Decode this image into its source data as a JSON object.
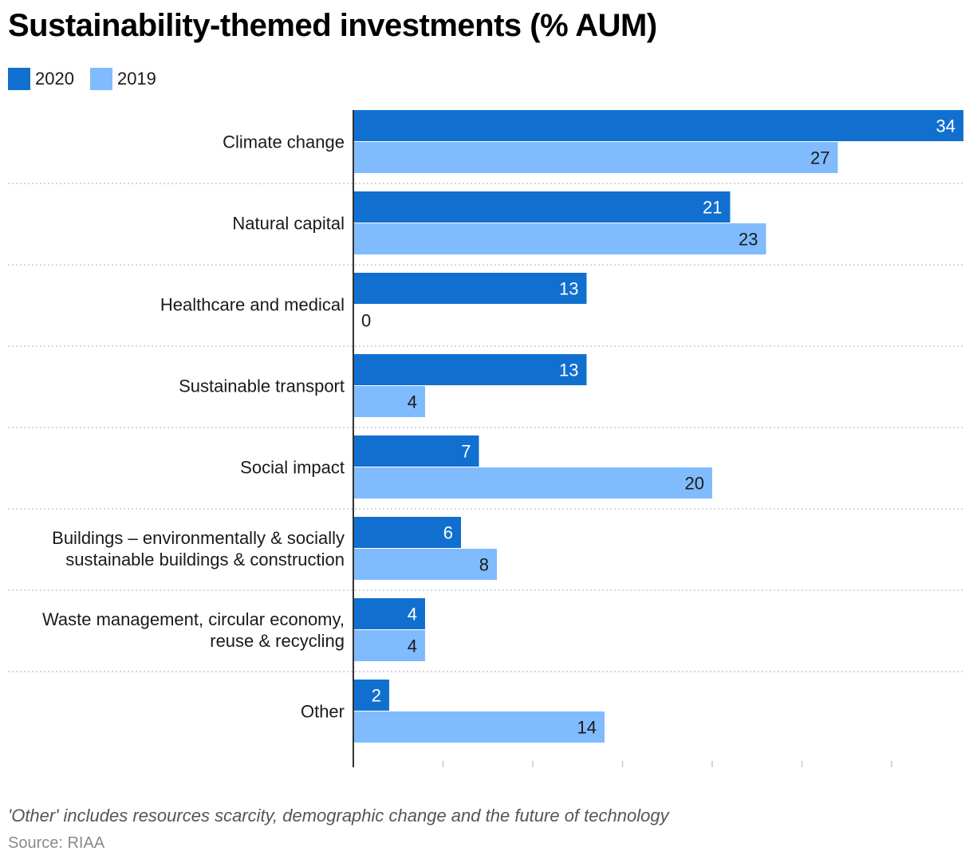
{
  "title": "Sustainability-themed investments (% AUM)",
  "note": "'Other' includes resources scarcity, demographic change and the future of technology",
  "source": "Source: RIAA",
  "colors": {
    "series_2020": "#1170cf",
    "series_2019": "#80bbfe",
    "grid": "#c8c8c8",
    "axis": "#333333"
  },
  "chart_data": {
    "type": "bar",
    "orientation": "horizontal",
    "categories": [
      [
        "Climate change"
      ],
      [
        "Natural capital"
      ],
      [
        "Healthcare and medical"
      ],
      [
        "Sustainable transport"
      ],
      [
        "Social impact"
      ],
      [
        "Buildings – environmentally & socially",
        "sustainable buildings & construction"
      ],
      [
        "Waste management, circular economy,",
        "reuse & recycling"
      ],
      [
        "Other"
      ]
    ],
    "series": [
      {
        "name": "2020",
        "values": [
          34,
          21,
          13,
          13,
          7,
          6,
          4,
          2
        ]
      },
      {
        "name": "2019",
        "values": [
          27,
          23,
          0,
          4,
          20,
          8,
          4,
          14
        ]
      }
    ],
    "xlim": [
      0,
      34
    ],
    "xticks": [
      0,
      5,
      10,
      15,
      20,
      25,
      30
    ],
    "legend": "top-left",
    "grid": "dotted separators between categories"
  }
}
